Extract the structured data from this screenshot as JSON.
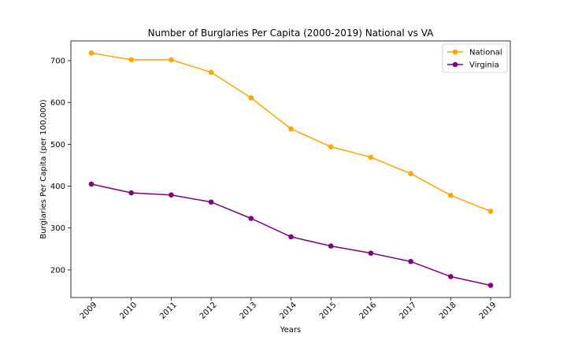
{
  "chart_data": {
    "type": "line",
    "title": "Number of Burglaries Per Capita (2000-2019) National vs VA",
    "xlabel": "Years",
    "ylabel": "Burglaries Per Capita (per 100,000)",
    "x": [
      "2009",
      "2010",
      "2011",
      "2012",
      "2013",
      "2014",
      "2015",
      "2016",
      "2017",
      "2018",
      "2019"
    ],
    "y_ticks": [
      200,
      300,
      400,
      500,
      600,
      700
    ],
    "ylim": [
      134,
      747
    ],
    "grid": false,
    "legend_position": "upper-right",
    "series": [
      {
        "name": "National",
        "color": "#FFA500",
        "values": [
          718,
          702,
          702,
          672,
          611,
          537,
          494,
          469,
          430,
          378,
          340
        ]
      },
      {
        "name": "Virginia",
        "color": "#800080",
        "values": [
          405,
          384,
          379,
          362,
          323,
          279,
          257,
          240,
          220,
          184,
          163
        ]
      }
    ]
  }
}
